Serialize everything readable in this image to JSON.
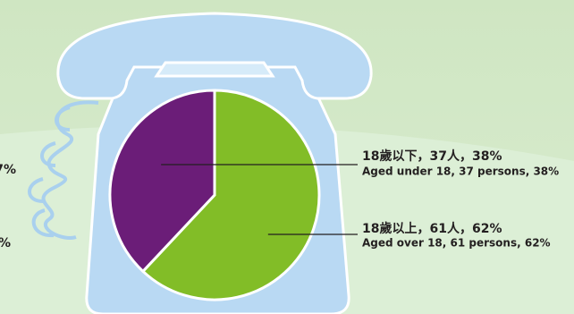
{
  "chart_data": {
    "type": "pie",
    "categories": [
      "18歲以上，61人，62%",
      "18歲以下，37人，38%"
    ],
    "categories_en": [
      "Aged over 18, 61 persons, 62%",
      "Aged under 18, 37 persons, 38%"
    ],
    "values": [
      62,
      38
    ],
    "colors": [
      "#82bd27",
      "#6b1d78"
    ],
    "cropped_labels": [
      "7%",
      "%"
    ]
  }
}
